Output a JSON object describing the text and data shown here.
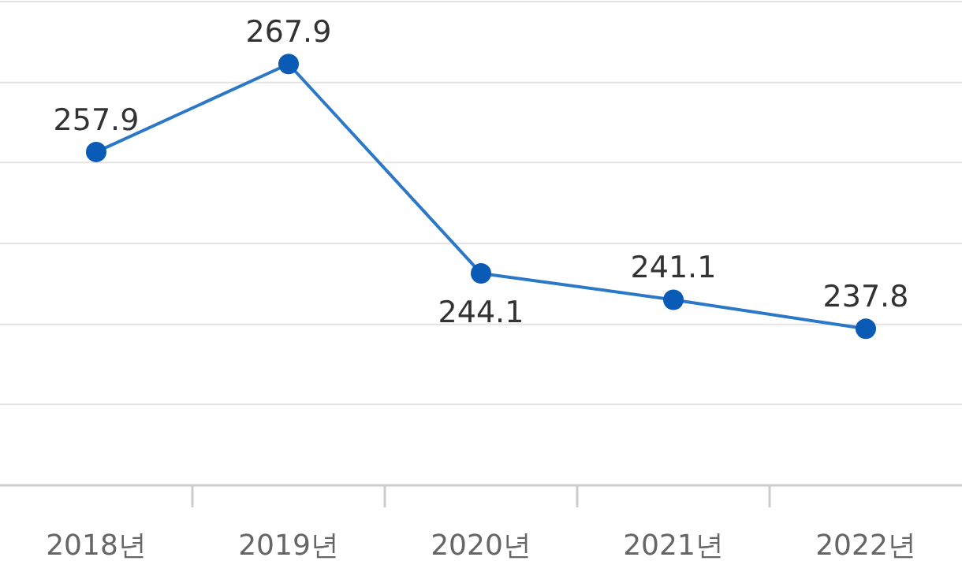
{
  "chart_data": {
    "type": "line",
    "categories": [
      "2018년",
      "2019년",
      "2020년",
      "2021년",
      "2022년"
    ],
    "series": [
      {
        "color": "#0a5bb5",
        "values": [
          257.9,
          267.9,
          244.1,
          241.1,
          237.8
        ]
      }
    ],
    "ylim": [
      220,
      275
    ],
    "yticks": [
      {
        "value": 220,
        "label": null
      },
      {
        "value": 229.2,
        "label": null
      },
      {
        "value": 238.3,
        "label": null
      },
      {
        "value": 247.5,
        "label": null
      },
      {
        "value": 256.7,
        "label": null
      },
      {
        "value": 265.8,
        "label": null
      },
      {
        "value": 275,
        "label": null
      }
    ],
    "grid": "y",
    "marker": "circle",
    "line_style": "solid",
    "data_labels": true
  }
}
